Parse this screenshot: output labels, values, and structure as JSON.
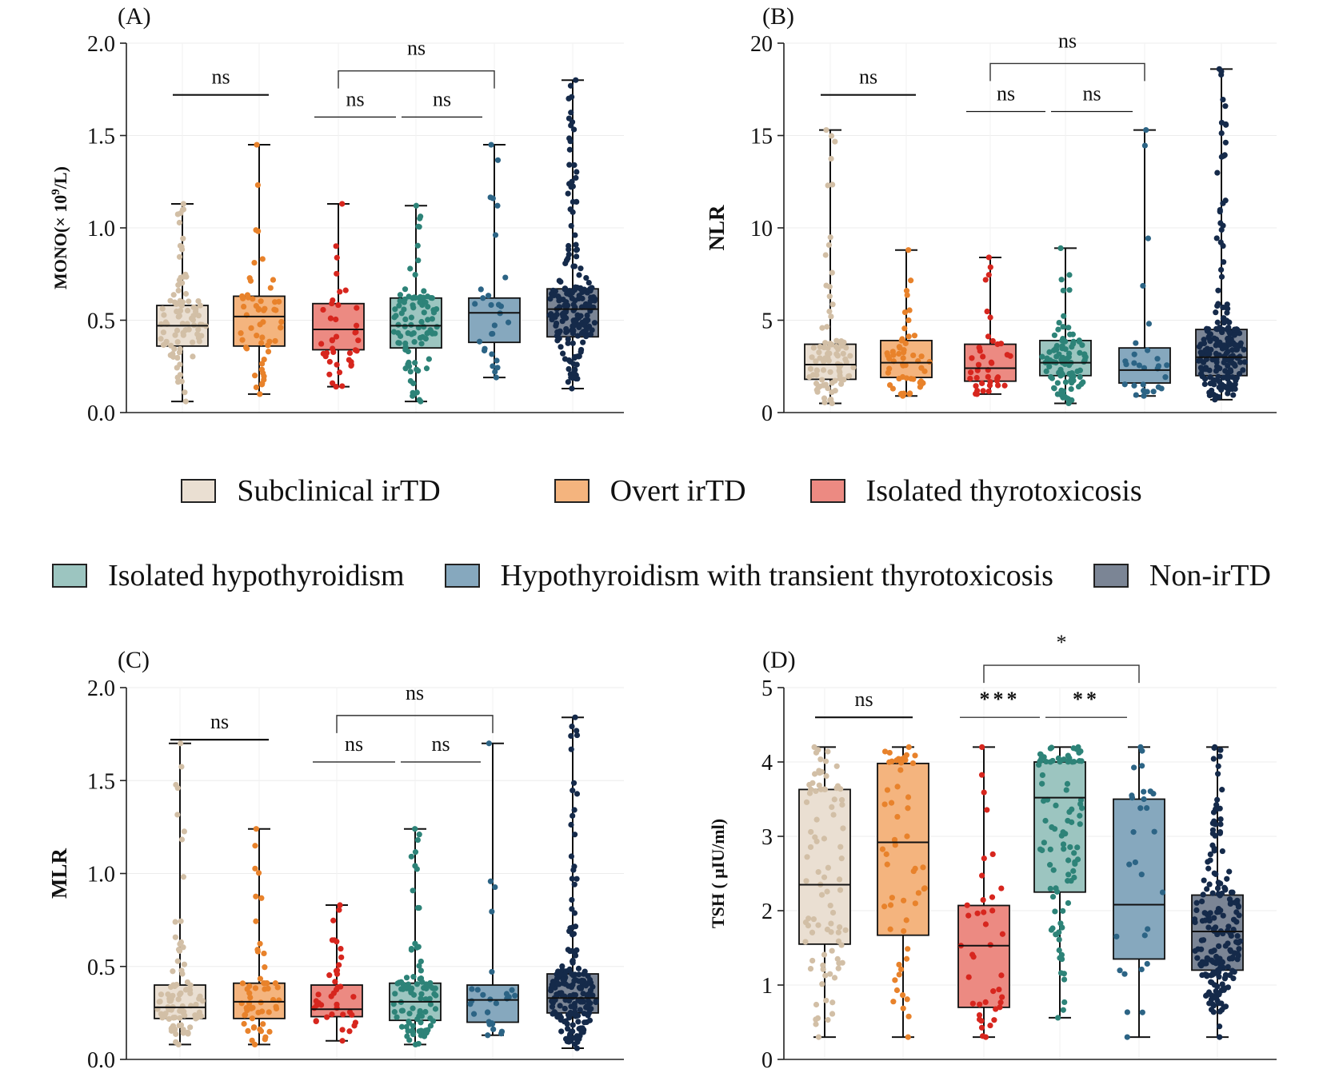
{
  "groups": [
    {
      "name": "Subclinical irTD",
      "fill": "#EADFD2",
      "dot": "#D2BFA6"
    },
    {
      "name": "Overt irTD",
      "fill": "#F4B47E",
      "dot": "#E8822B"
    },
    {
      "name": "Isolated thyrotoxicosis",
      "fill": "#EC8A82",
      "dot": "#D7261E"
    },
    {
      "name": "Isolated hypothyroidism",
      "fill": "#9CC5C0",
      "dot": "#2D8378"
    },
    {
      "name": "Hypothyroidism with transient thyrotoxicosis",
      "fill": "#86A8BE",
      "dot": "#2C6485"
    },
    {
      "name": "Non-irTD",
      "fill": "#7B8595",
      "dot": "#152A4A"
    }
  ],
  "chart_data": [
    {
      "type": "box",
      "panel_label": "(A)",
      "ylabel_pre": "MONO(× 10",
      "ylabel_sup": "9",
      "ylabel_post": "/L)",
      "ylim": [
        0,
        2
      ],
      "yticks": [
        "0.0",
        "0.5",
        "1.0",
        "1.5",
        "2.0"
      ],
      "ytick_values": [
        0,
        0.5,
        1.0,
        1.5,
        2.0
      ],
      "boxes": [
        {
          "group": "Subclinical irTD",
          "min": 0.06,
          "q1": 0.36,
          "median": 0.47,
          "q3": 0.58,
          "max": 1.13,
          "n": 90
        },
        {
          "group": "Overt irTD",
          "min": 0.1,
          "q1": 0.36,
          "median": 0.52,
          "q3": 0.63,
          "max": 1.45,
          "n": 55
        },
        {
          "group": "Isolated thyrotoxicosis",
          "min": 0.14,
          "q1": 0.34,
          "median": 0.45,
          "q3": 0.59,
          "max": 1.13,
          "n": 40
        },
        {
          "group": "Isolated hypothyroidism",
          "min": 0.06,
          "q1": 0.35,
          "median": 0.47,
          "q3": 0.62,
          "max": 1.12,
          "n": 95
        },
        {
          "group": "Hypothyroidism with transient thyrotoxicosis",
          "min": 0.19,
          "q1": 0.38,
          "median": 0.54,
          "q3": 0.62,
          "max": 1.45,
          "n": 28
        },
        {
          "group": "Non-irTD",
          "min": 0.13,
          "q1": 0.41,
          "median": 0.56,
          "q3": 0.67,
          "max": 1.8,
          "n": 200
        }
      ],
      "annotations": [
        {
          "from": 0,
          "to": 1,
          "y": 1.72,
          "text": "ns",
          "bracket": false
        },
        {
          "from": 2,
          "to": 3,
          "y": 1.6,
          "text": "ns",
          "bracket": false
        },
        {
          "from": 3,
          "to": 4,
          "y": 1.6,
          "text": "ns",
          "bracket": false
        },
        {
          "from": 2,
          "to": 4,
          "y": 1.85,
          "text": "ns",
          "bracket": true
        }
      ]
    },
    {
      "type": "box",
      "panel_label": "(B)",
      "ylabel_pre": "NLR",
      "ylabel_sup": "",
      "ylabel_post": "",
      "ylim": [
        0,
        20
      ],
      "yticks": [
        "0",
        "5",
        "10",
        "15",
        "20"
      ],
      "ytick_values": [
        0,
        5,
        10,
        15,
        20
      ],
      "boxes": [
        {
          "group": "Subclinical irTD",
          "min": 0.5,
          "q1": 1.8,
          "median": 2.6,
          "q3": 3.7,
          "max": 15.3,
          "n": 90
        },
        {
          "group": "Overt irTD",
          "min": 0.9,
          "q1": 1.9,
          "median": 2.7,
          "q3": 3.9,
          "max": 8.8,
          "n": 55
        },
        {
          "group": "Isolated thyrotoxicosis",
          "min": 1.0,
          "q1": 1.7,
          "median": 2.4,
          "q3": 3.7,
          "max": 8.4,
          "n": 40
        },
        {
          "group": "Isolated hypothyroidism",
          "min": 0.5,
          "q1": 2.0,
          "median": 2.7,
          "q3": 3.9,
          "max": 8.9,
          "n": 95
        },
        {
          "group": "Hypothyroidism with transient thyrotoxicosis",
          "min": 0.9,
          "q1": 1.6,
          "median": 2.3,
          "q3": 3.5,
          "max": 15.3,
          "n": 28
        },
        {
          "group": "Non-irTD",
          "min": 0.7,
          "q1": 2.0,
          "median": 3.0,
          "q3": 4.5,
          "max": 18.6,
          "n": 200
        }
      ],
      "annotations": [
        {
          "from": 0,
          "to": 1,
          "y": 17.2,
          "text": "ns",
          "bracket": false
        },
        {
          "from": 2,
          "to": 3,
          "y": 16.3,
          "text": "ns",
          "bracket": false
        },
        {
          "from": 3,
          "to": 4,
          "y": 16.3,
          "text": "ns",
          "bracket": false
        },
        {
          "from": 2,
          "to": 4,
          "y": 18.9,
          "text": "ns",
          "bracket": true
        }
      ]
    },
    {
      "type": "box",
      "panel_label": "(C)",
      "ylabel_pre": "MLR",
      "ylabel_sup": "",
      "ylabel_post": "",
      "ylim": [
        0,
        2
      ],
      "yticks": [
        "0.0",
        "0.5",
        "1.0",
        "1.5",
        "2.0"
      ],
      "ytick_values": [
        0,
        0.5,
        1.0,
        1.5,
        2.0
      ],
      "boxes": [
        {
          "group": "Subclinical irTD",
          "min": 0.08,
          "q1": 0.22,
          "median": 0.28,
          "q3": 0.4,
          "max": 1.7,
          "n": 90
        },
        {
          "group": "Overt irTD",
          "min": 0.08,
          "q1": 0.22,
          "median": 0.31,
          "q3": 0.41,
          "max": 1.24,
          "n": 55
        },
        {
          "group": "Isolated thyrotoxicosis",
          "min": 0.1,
          "q1": 0.23,
          "median": 0.27,
          "q3": 0.4,
          "max": 0.83,
          "n": 40
        },
        {
          "group": "Isolated hypothyroidism",
          "min": 0.08,
          "q1": 0.21,
          "median": 0.31,
          "q3": 0.41,
          "max": 1.24,
          "n": 95
        },
        {
          "group": "Hypothyroidism with transient thyrotoxicosis",
          "min": 0.13,
          "q1": 0.2,
          "median": 0.32,
          "q3": 0.4,
          "max": 1.7,
          "n": 28
        },
        {
          "group": "Non-irTD",
          "min": 0.06,
          "q1": 0.25,
          "median": 0.33,
          "q3": 0.46,
          "max": 1.84,
          "n": 200
        }
      ],
      "annotations": [
        {
          "from": 0,
          "to": 1,
          "y": 1.72,
          "text": "ns",
          "bracket": false
        },
        {
          "from": 2,
          "to": 3,
          "y": 1.6,
          "text": "ns",
          "bracket": false
        },
        {
          "from": 3,
          "to": 4,
          "y": 1.6,
          "text": "ns",
          "bracket": false
        },
        {
          "from": 2,
          "to": 4,
          "y": 1.85,
          "text": "ns",
          "bracket": true
        }
      ]
    },
    {
      "type": "box",
      "panel_label": "(D)",
      "ylabel_pre": "TSH ( μIU/ml)",
      "ylabel_sup": "",
      "ylabel_post": "",
      "ylim": [
        0,
        5
      ],
      "yticks": [
        "0",
        "1",
        "2",
        "3",
        "4",
        "5"
      ],
      "ytick_values": [
        0,
        1,
        2,
        3,
        4,
        5
      ],
      "boxes": [
        {
          "group": "Subclinical irTD",
          "min": 0.3,
          "q1": 1.55,
          "median": 2.35,
          "q3": 3.63,
          "max": 4.2,
          "n": 90
        },
        {
          "group": "Overt irTD",
          "min": 0.3,
          "q1": 1.67,
          "median": 2.92,
          "q3": 3.98,
          "max": 4.2,
          "n": 55
        },
        {
          "group": "Isolated thyrotoxicosis",
          "min": 0.3,
          "q1": 0.7,
          "median": 1.53,
          "q3": 2.07,
          "max": 4.2,
          "n": 40
        },
        {
          "group": "Isolated hypothyroidism",
          "min": 0.56,
          "q1": 2.25,
          "median": 3.52,
          "q3": 4.0,
          "max": 4.2,
          "n": 95
        },
        {
          "group": "Hypothyroidism with transient thyrotoxicosis",
          "min": 0.3,
          "q1": 1.35,
          "median": 2.08,
          "q3": 3.5,
          "max": 4.2,
          "n": 28
        },
        {
          "group": "Non-irTD",
          "min": 0.3,
          "q1": 1.2,
          "median": 1.72,
          "q3": 2.21,
          "max": 4.2,
          "n": 200
        }
      ],
      "annotations": [
        {
          "from": 0,
          "to": 1,
          "y": 4.6,
          "text": "ns",
          "bracket": false
        },
        {
          "from": 2,
          "to": 3,
          "y": 4.6,
          "text": "***",
          "bracket": false
        },
        {
          "from": 3,
          "to": 4,
          "y": 4.6,
          "text": "**",
          "bracket": false
        },
        {
          "from": 2,
          "to": 4,
          "y": 5.3,
          "text": "*",
          "bracket": true
        }
      ]
    }
  ]
}
